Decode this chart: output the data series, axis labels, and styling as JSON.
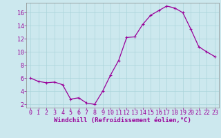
{
  "x": [
    0,
    1,
    2,
    3,
    4,
    5,
    6,
    7,
    8,
    9,
    10,
    11,
    12,
    13,
    14,
    15,
    16,
    17,
    18,
    19,
    20,
    21,
    22,
    23
  ],
  "y": [
    6.0,
    5.5,
    5.3,
    5.4,
    5.0,
    2.8,
    3.0,
    2.2,
    2.0,
    4.0,
    6.5,
    8.7,
    12.2,
    12.3,
    14.2,
    15.6,
    16.3,
    17.0,
    16.7,
    16.0,
    13.5,
    10.8,
    10.0,
    9.3
  ],
  "line_color": "#990099",
  "marker": "+",
  "marker_size": 3,
  "bg_color": "#cce8ee",
  "grid_color": "#aad4da",
  "xlabel": "Windchill (Refroidissement éolien,°C)",
  "xlabel_color": "#990099",
  "tick_color": "#990099",
  "axis_color": "#888888",
  "ylim": [
    1.5,
    17.5
  ],
  "xlim": [
    -0.5,
    23.5
  ],
  "yticks": [
    2,
    4,
    6,
    8,
    10,
    12,
    14,
    16
  ],
  "xticks": [
    0,
    1,
    2,
    3,
    4,
    5,
    6,
    7,
    8,
    9,
    10,
    11,
    12,
    13,
    14,
    15,
    16,
    17,
    18,
    19,
    20,
    21,
    22,
    23
  ],
  "tick_fontsize": 6.0,
  "xlabel_fontsize": 6.5,
  "linewidth": 0.9,
  "markeredgewidth": 0.8
}
